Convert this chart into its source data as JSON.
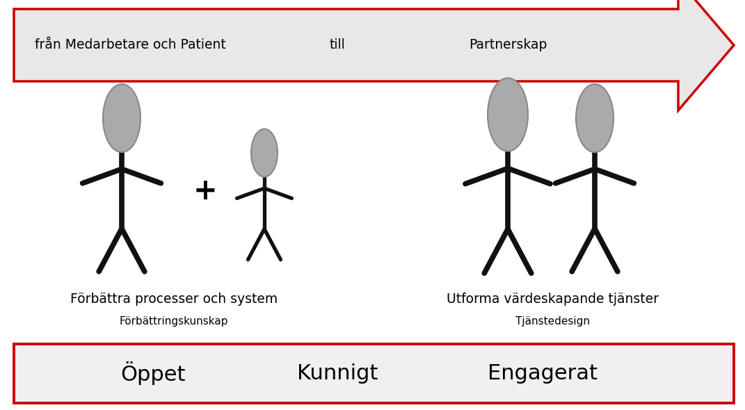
{
  "background_color": "#ffffff",
  "arrow_fill": "#e8e8e8",
  "arrow_edge": "#cc0000",
  "arrow_text_left": "från Medarbetare och Patient",
  "arrow_text_mid": "till",
  "arrow_text_right": "Partnerskap",
  "stick_color": "#111111",
  "head_color": "#aaaaaa",
  "head_edgecolor": "#888888",
  "label1_main": "Förbättra processer och system",
  "label1_sub": "Förbättringskunskap",
  "label2_main": "Utforma värdeskapande tjänster",
  "label2_sub": "Tjänstedesign",
  "bottom_text1": "Öppet",
  "bottom_text2": "Kunnigt",
  "bottom_text3": "Engagerat",
  "bottom_box_color": "#f0f0f0",
  "bottom_box_edgecolor": "#cc0000",
  "plus_text": "+"
}
